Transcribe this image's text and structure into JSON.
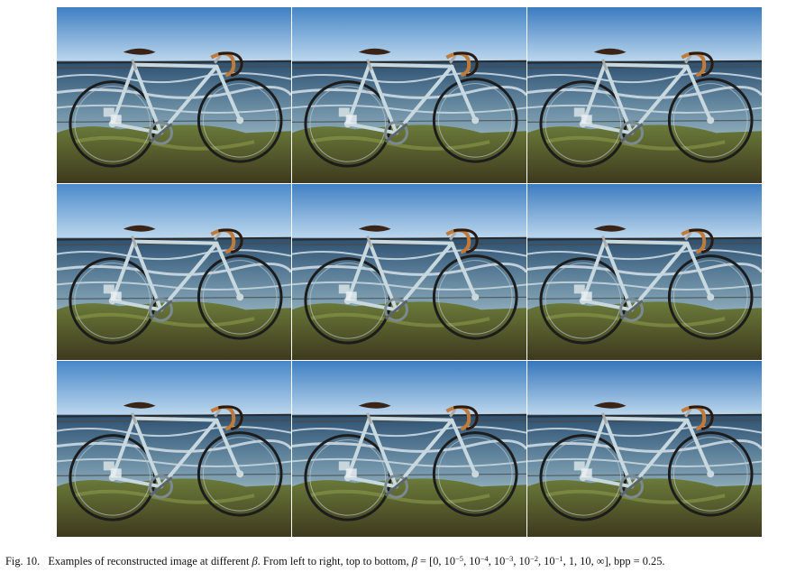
{
  "figure": {
    "grid": {
      "rows": 3,
      "cols": 3,
      "tile_alt": "reconstructed bicycle image",
      "beta_values": [
        "0",
        "10^-5",
        "10^-4",
        "10^-3",
        "10^-2",
        "10^-1",
        "1",
        "10",
        "∞"
      ]
    },
    "caption": {
      "label": "Fig. 10.",
      "text1": "Examples of reconstructed image at different",
      "beta": "β",
      "text2": ". From left to right, top to bottom,",
      "beta_eq": "β",
      "eq_open": " = [0, 10",
      "exp1": "−5",
      "s1": ", 10",
      "exp2": "−4",
      "s2": ", 10",
      "exp3": "−3",
      "s3": ", 10",
      "exp4": "−2",
      "s4": ", 10",
      "exp5": "−1",
      "tail": ", 1, 10, ∞], bpp = 0.25."
    }
  }
}
